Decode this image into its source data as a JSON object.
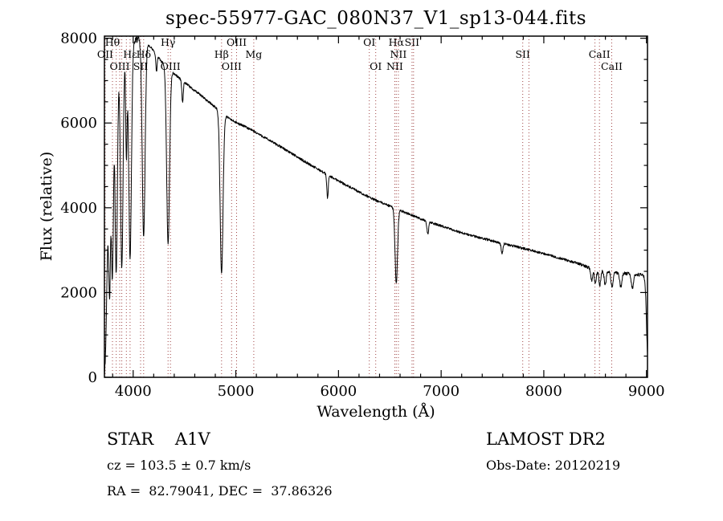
{
  "chart_data": {
    "type": "line",
    "title": "spec-55977-GAC_080N37_V1_sp13-044.fits",
    "xlabel": "Wavelength (Å)",
    "ylabel": "Flux (relative)",
    "xlim": [
      3720,
      9010
    ],
    "ylim": [
      0,
      8050
    ],
    "x_major_ticks": [
      4000,
      5000,
      6000,
      7000,
      8000,
      9000
    ],
    "x_minor_step": 200,
    "y_major_ticks": [
      0,
      2000,
      4000,
      6000,
      8000
    ],
    "y_minor_step": 500,
    "grid": false,
    "legend": "none",
    "line_color": "#000000",
    "marker_line_color": "#a04545",
    "marker_label_color": "#000000",
    "label_rows_y": {
      "1": 57,
      "2": 72,
      "3": 87
    },
    "sample_step": 2.5,
    "noise": {
      "seed": 42,
      "base_amp": 28,
      "blue_amp": 75,
      "blue_limit": 4100,
      "red_amp": 38,
      "red_limit": 8350
    },
    "spectrum_continuum": [
      [
        3720,
        100
      ],
      [
        3728,
        400
      ],
      [
        3736,
        1100
      ],
      [
        3744,
        2200
      ],
      [
        3752,
        3400
      ],
      [
        3760,
        4400
      ],
      [
        3770,
        5300
      ],
      [
        3780,
        5950
      ],
      [
        3790,
        6350
      ],
      [
        3800,
        6650
      ],
      [
        3815,
        6850
      ],
      [
        3830,
        7000
      ],
      [
        3850,
        7200
      ],
      [
        3875,
        7380
      ],
      [
        3900,
        7530
      ],
      [
        3925,
        7650
      ],
      [
        3950,
        7760
      ],
      [
        3975,
        7840
      ],
      [
        4000,
        7900
      ],
      [
        4030,
        7960
      ],
      [
        4060,
        8000
      ],
      [
        4090,
        7990
      ],
      [
        4120,
        7930
      ],
      [
        4150,
        7850
      ],
      [
        4180,
        7760
      ],
      [
        4210,
        7660
      ],
      [
        4240,
        7560
      ],
      [
        4270,
        7470
      ],
      [
        4300,
        7390
      ],
      [
        4340,
        7290
      ],
      [
        4380,
        7200
      ],
      [
        4420,
        7120
      ],
      [
        4460,
        7040
      ],
      [
        4500,
        6960
      ],
      [
        4540,
        6880
      ],
      [
        4580,
        6800
      ],
      [
        4620,
        6730
      ],
      [
        4660,
        6650
      ],
      [
        4700,
        6570
      ],
      [
        4740,
        6490
      ],
      [
        4780,
        6410
      ],
      [
        4820,
        6330
      ],
      [
        4860,
        6250
      ],
      [
        4900,
        6170
      ],
      [
        4940,
        6100
      ],
      [
        4980,
        6040
      ],
      [
        5020,
        5990
      ],
      [
        5060,
        5950
      ],
      [
        5100,
        5900
      ],
      [
        5150,
        5840
      ],
      [
        5200,
        5770
      ],
      [
        5250,
        5700
      ],
      [
        5300,
        5630
      ],
      [
        5350,
        5560
      ],
      [
        5400,
        5490
      ],
      [
        5450,
        5420
      ],
      [
        5500,
        5350
      ],
      [
        5550,
        5270
      ],
      [
        5600,
        5200
      ],
      [
        5650,
        5120
      ],
      [
        5700,
        5050
      ],
      [
        5750,
        4980
      ],
      [
        5800,
        4910
      ],
      [
        5850,
        4840
      ],
      [
        5900,
        4770
      ],
      [
        5950,
        4700
      ],
      [
        6000,
        4640
      ],
      [
        6050,
        4570
      ],
      [
        6100,
        4500
      ],
      [
        6150,
        4440
      ],
      [
        6200,
        4370
      ],
      [
        6250,
        4310
      ],
      [
        6300,
        4250
      ],
      [
        6350,
        4190
      ],
      [
        6400,
        4140
      ],
      [
        6450,
        4090
      ],
      [
        6500,
        4040
      ],
      [
        6550,
        3990
      ],
      [
        6600,
        3940
      ],
      [
        6650,
        3890
      ],
      [
        6700,
        3840
      ],
      [
        6750,
        3790
      ],
      [
        6800,
        3740
      ],
      [
        6850,
        3690
      ],
      [
        6900,
        3650
      ],
      [
        6950,
        3610
      ],
      [
        7000,
        3570
      ],
      [
        7100,
        3490
      ],
      [
        7200,
        3410
      ],
      [
        7300,
        3340
      ],
      [
        7400,
        3280
      ],
      [
        7500,
        3220
      ],
      [
        7600,
        3160
      ],
      [
        7700,
        3100
      ],
      [
        7800,
        3040
      ],
      [
        7900,
        2980
      ],
      [
        8000,
        2920
      ],
      [
        8100,
        2850
      ],
      [
        8200,
        2780
      ],
      [
        8300,
        2710
      ],
      [
        8400,
        2630
      ],
      [
        8450,
        2580
      ],
      [
        8500,
        2540
      ],
      [
        8550,
        2510
      ],
      [
        8600,
        2490
      ],
      [
        8650,
        2475
      ],
      [
        8700,
        2465
      ],
      [
        8750,
        2455
      ],
      [
        8800,
        2450
      ],
      [
        8850,
        2440
      ],
      [
        8900,
        2430
      ],
      [
        8950,
        2415
      ],
      [
        9000,
        2400
      ],
      [
        9010,
        2395
      ]
    ],
    "absorption_features": [
      {
        "center": 3771,
        "depth": 3400,
        "sigma": 9
      },
      {
        "center": 3798,
        "depth": 4200,
        "sigma": 10
      },
      {
        "center": 3835,
        "depth": 4600,
        "sigma": 11
      },
      {
        "center": 3889,
        "depth": 4900,
        "sigma": 12
      },
      {
        "center": 3934,
        "depth": 2400,
        "sigma": 7
      },
      {
        "center": 3970,
        "depth": 5000,
        "sigma": 13
      },
      {
        "center": 4102,
        "depth": 4650,
        "sigma": 14
      },
      {
        "center": 4227,
        "depth": 400,
        "sigma": 6
      },
      {
        "center": 4340,
        "depth": 4150,
        "sigma": 14
      },
      {
        "center": 4481,
        "depth": 500,
        "sigma": 7
      },
      {
        "center": 4861,
        "depth": 3800,
        "sigma": 14
      },
      {
        "center": 5893,
        "depth": 550,
        "sigma": 7
      },
      {
        "center": 6563,
        "depth": 1750,
        "sigma": 12
      },
      {
        "center": 6870,
        "depth": 300,
        "sigma": 8
      },
      {
        "center": 7593,
        "depth": 250,
        "sigma": 8
      },
      {
        "center": 8467,
        "depth": 300,
        "sigma": 9
      },
      {
        "center": 8502,
        "depth": 340,
        "sigma": 9
      },
      {
        "center": 8545,
        "depth": 340,
        "sigma": 9
      },
      {
        "center": 8598,
        "depth": 310,
        "sigma": 9
      },
      {
        "center": 8665,
        "depth": 340,
        "sigma": 10
      },
      {
        "center": 8750,
        "depth": 330,
        "sigma": 10
      },
      {
        "center": 8863,
        "depth": 340,
        "sigma": 11
      },
      {
        "center": 9015,
        "depth": 1950,
        "sigma": 14
      }
    ],
    "spectral_line_markers": [
      {
        "label": "OII",
        "wavelength": 3727,
        "row": 2
      },
      {
        "label": "Hθ",
        "wavelength": 3798,
        "row": 1
      },
      {
        "label": "",
        "wavelength": 3835,
        "row": 0
      },
      {
        "label": "OIII",
        "wavelength": 3869,
        "row": 3
      },
      {
        "label": "",
        "wavelength": 3889,
        "row": 0
      },
      {
        "label": "",
        "wavelength": 3934,
        "row": 0
      },
      {
        "label": "Hε",
        "wavelength": 3970,
        "row": 2
      },
      {
        "label": "SII",
        "wavelength": 4072,
        "row": 3
      },
      {
        "label": "Hδ",
        "wavelength": 4102,
        "row": 2
      },
      {
        "label": "Hγ",
        "wavelength": 4340,
        "row": 1
      },
      {
        "label": "OIII",
        "wavelength": 4363,
        "row": 3
      },
      {
        "label": "Hβ",
        "wavelength": 4861,
        "row": 2
      },
      {
        "label": "OIII",
        "wavelength": 4959,
        "row": 3
      },
      {
        "label": "OIII",
        "wavelength": 5007,
        "row": 1
      },
      {
        "label": "Mg",
        "wavelength": 5175,
        "row": 2
      },
      {
        "label": "OI",
        "wavelength": 6300,
        "row": 1
      },
      {
        "label": "OI",
        "wavelength": 6363,
        "row": 3
      },
      {
        "label": "NII",
        "wavelength": 6548,
        "row": 3
      },
      {
        "label": "Hα",
        "wavelength": 6563,
        "row": 1
      },
      {
        "label": "NII",
        "wavelength": 6583,
        "row": 2
      },
      {
        "label": "SII",
        "wavelength": 6716,
        "row": 1
      },
      {
        "label": "",
        "wavelength": 6731,
        "row": 0
      },
      {
        "label": "SII",
        "wavelength": 7795,
        "row": 2
      },
      {
        "label": "",
        "wavelength": 7855,
        "row": 0
      },
      {
        "label": "",
        "wavelength": 8498,
        "row": 0
      },
      {
        "label": "CaII",
        "wavelength": 8542,
        "row": 2
      },
      {
        "label": "CaII",
        "wavelength": 8662,
        "row": 3
      }
    ]
  },
  "annotations": {
    "object_class": "STAR    A1V",
    "cz": "cz = 103.5 ± 0.7 km/s",
    "ra_dec": "RA =  82.79041, DEC =  37.86326",
    "survey": "LAMOST DR2",
    "obs_date": "Obs-Date: 20120219"
  }
}
